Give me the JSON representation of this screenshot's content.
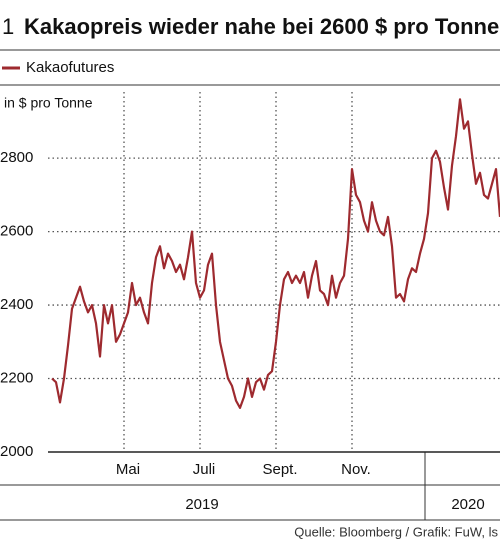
{
  "number": "1",
  "source": "Quelle: Bloomberg / Grafik: FuW, ls",
  "chart_data": {
    "type": "line",
    "title": "Kakaopreis wieder nahe bei 2600 $ pro Tonne",
    "y_label": "in $ pro Tonne",
    "year_labels": [
      "2019",
      "2020"
    ],
    "categories": [
      null,
      null,
      null,
      null,
      null,
      null,
      null,
      null,
      null,
      null,
      null,
      null,
      null,
      null,
      null,
      null,
      null,
      null,
      null,
      "Mai",
      null,
      null,
      null,
      null,
      null,
      null,
      null,
      null,
      null,
      null,
      null,
      null,
      null,
      null,
      null,
      null,
      null,
      null,
      "Juli",
      null,
      null,
      null,
      null,
      null,
      null,
      null,
      null,
      null,
      null,
      null,
      null,
      null,
      null,
      null,
      null,
      null,
      null,
      "Sept.",
      null,
      null,
      null,
      null,
      null,
      null,
      null,
      null,
      null,
      null,
      null,
      null,
      null,
      null,
      null,
      null,
      null,
      null,
      "Nov.",
      null,
      null,
      null,
      null,
      null,
      null,
      null,
      null,
      null,
      null,
      null,
      null,
      null,
      null,
      null,
      null,
      null,
      null,
      null,
      null,
      null,
      null,
      null,
      null,
      null,
      null,
      null,
      null,
      null,
      null,
      null,
      null,
      null,
      null,
      null,
      null
    ],
    "series": [
      {
        "name": "Kakaofutures",
        "color": "#9e2a2f",
        "values": [
          2200,
          2190,
          2135,
          2200,
          2290,
          2390,
          2420,
          2450,
          2410,
          2380,
          2400,
          2350,
          2260,
          2400,
          2350,
          2400,
          2300,
          2320,
          2350,
          2380,
          2460,
          2400,
          2420,
          2380,
          2350,
          2460,
          2530,
          2560,
          2500,
          2540,
          2520,
          2490,
          2510,
          2470,
          2530,
          2600,
          2460,
          2420,
          2440,
          2510,
          2540,
          2400,
          2300,
          2250,
          2200,
          2180,
          2140,
          2120,
          2150,
          2200,
          2150,
          2190,
          2200,
          2170,
          2210,
          2220,
          2300,
          2400,
          2470,
          2490,
          2460,
          2480,
          2460,
          2490,
          2420,
          2480,
          2520,
          2440,
          2430,
          2400,
          2480,
          2420,
          2460,
          2480,
          2580,
          2770,
          2700,
          2680,
          2630,
          2600,
          2680,
          2630,
          2600,
          2590,
          2640,
          2560,
          2420,
          2430,
          2410,
          2470,
          2500,
          2490,
          2540,
          2580,
          2650,
          2800,
          2820,
          2790,
          2720,
          2660,
          2780,
          2860,
          2960,
          2880,
          2900,
          2810,
          2730,
          2760,
          2700,
          2690,
          2730,
          2770,
          2640
        ]
      }
    ],
    "ylim": [
      2000,
      2980
    ],
    "yticks": [
      2000,
      2200,
      2400,
      2600,
      2800
    ],
    "grid": true
  }
}
